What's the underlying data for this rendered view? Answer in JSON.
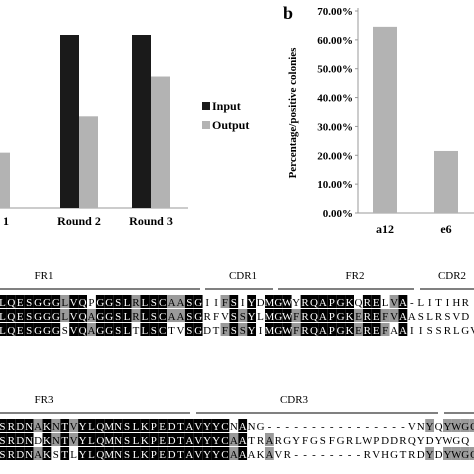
{
  "figure": {
    "panel_b_label": "b",
    "alignment_headers_top": [
      "FR1",
      "CDR1",
      "FR2",
      "CDR2"
    ],
    "alignment_headers_bottom": [
      "FR3",
      "CDR3"
    ]
  },
  "chart_data": [
    {
      "type": "bar",
      "categories": [
        "1",
        "Round 2",
        "Round 3"
      ],
      "series": [
        {
          "name": "Input",
          "values": [
            null,
            100,
            100
          ],
          "color": "#1a1a1a"
        },
        {
          "name": "Output",
          "values": [
            32,
            53,
            76
          ],
          "color": "#b3b3b3"
        }
      ],
      "legend": [
        "Input",
        "Output"
      ],
      "legend_position": "right",
      "grid": false
    },
    {
      "type": "bar",
      "categories": [
        "a12",
        "e6"
      ],
      "values": [
        64.5,
        21.5
      ],
      "ylabel": "Percentage/positive colonies",
      "ytick_labels": [
        "0.00%",
        "10.00%",
        "20.00%",
        "30.00%",
        "40.00%",
        "50.00%",
        "60.00%",
        "70.00%"
      ],
      "ylim": [
        0,
        70
      ],
      "color": "#b3b3b3",
      "grid": false
    }
  ],
  "alignment": {
    "rows_top": [
      "LQESGGGLVQPGGSLRLSCAASGIIFSIYDMGWYRQAPGKQRELVA-LITIHR",
      "LQESGGGLVQAGGSLRLSCAASGRFVSSYLMGWFRQAPGKEREFVAASLRSVD",
      "LQESGGGSVQAGGSLTLSCTVSGDTFSSYIMGWFRQAPGKEREFAAIISSRLGV"
    ],
    "rows_bottom": [
      "SRDNAKNTVYLQMNSLKPEDTAVYYCNANG----------------VNYQYWGQ",
      "SRDNDKNTVYLQMNSLKPEDTAVYYCAATRARGYFGSFGRLWPDDRQYDYWGQ",
      "SRDNAKSTLYLQMNSLKPEDTAVYYCAAAKAVR--------RVHGTRDYDYWGQ"
    ]
  }
}
